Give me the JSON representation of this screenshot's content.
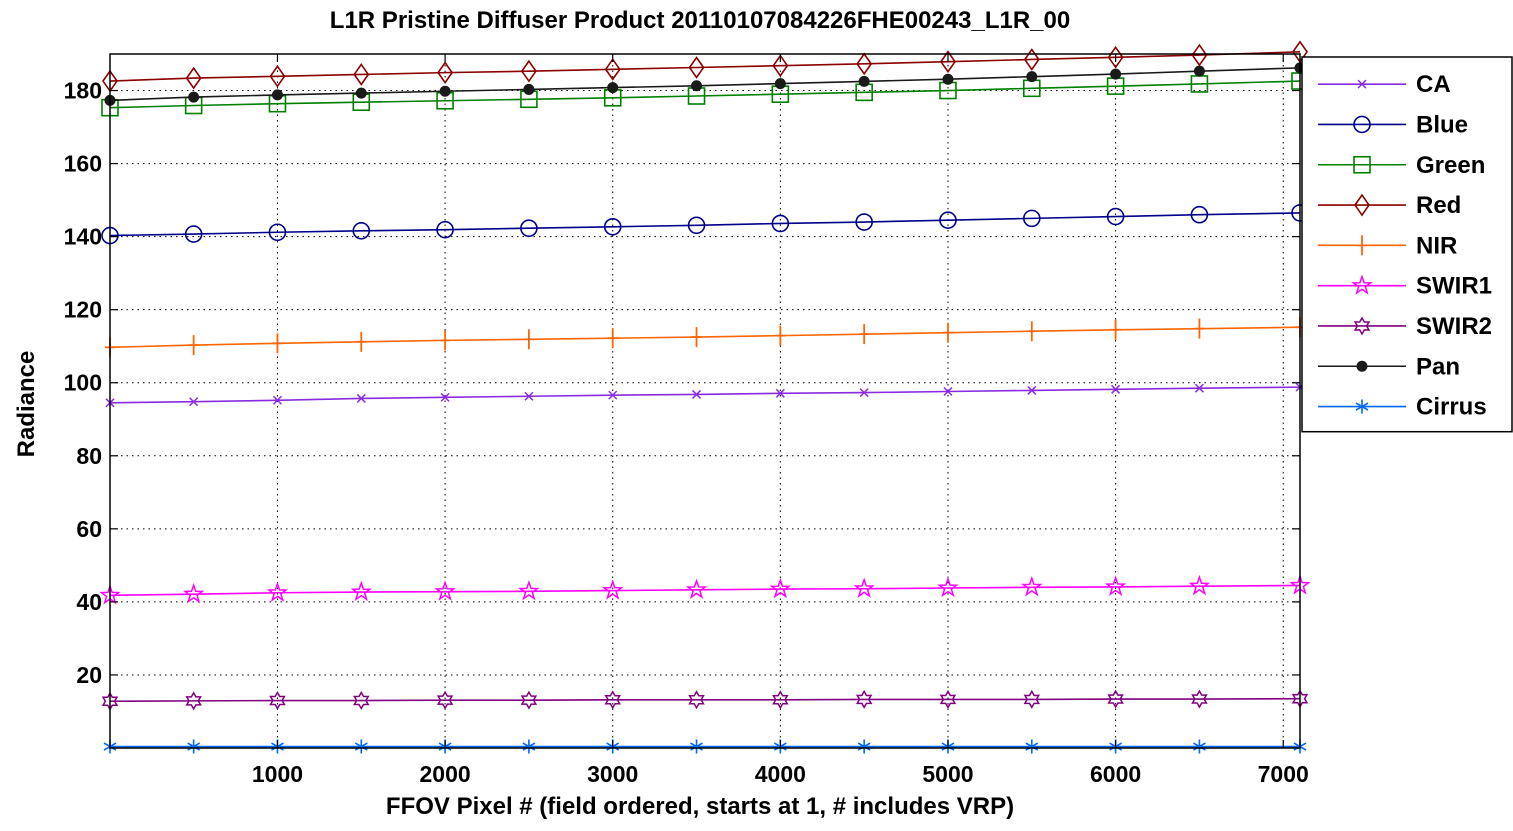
{
  "chart_data": {
    "type": "line",
    "title": "L1R Pristine Diffuser Product 20110107084226FHE00243_L1R_00",
    "xlabel": "FFOV Pixel # (field ordered, starts at 1, # includes VRP)",
    "ylabel": "Radiance",
    "xlim": [
      1,
      7100
    ],
    "ylim": [
      0,
      190
    ],
    "xticks": [
      1000,
      2000,
      3000,
      4000,
      5000,
      6000,
      7000
    ],
    "yticks": [
      20,
      40,
      60,
      80,
      100,
      120,
      140,
      160,
      180
    ],
    "grid": true,
    "legend_position": "outside-top-right",
    "x": [
      1,
      500,
      1000,
      1500,
      2000,
      2500,
      3000,
      3500,
      4000,
      4500,
      5000,
      5500,
      6000,
      6500,
      7100
    ],
    "series": [
      {
        "name": "CA",
        "color": "#8a2be2",
        "marker": "x",
        "values": [
          94.5,
          94.8,
          95.2,
          95.7,
          96.0,
          96.3,
          96.6,
          96.8,
          97.1,
          97.3,
          97.6,
          97.9,
          98.2,
          98.5,
          98.8
        ]
      },
      {
        "name": "Blue",
        "color": "#00008b",
        "marker": "circle",
        "values": [
          140.3,
          140.7,
          141.2,
          141.6,
          141.9,
          142.3,
          142.7,
          143.1,
          143.6,
          144.0,
          144.5,
          145.0,
          145.5,
          146.0,
          146.5
        ]
      },
      {
        "name": "Green",
        "color": "#008000",
        "marker": "square",
        "values": [
          175.3,
          175.9,
          176.4,
          176.8,
          177.2,
          177.6,
          178.0,
          178.5,
          179.0,
          179.5,
          180.0,
          180.6,
          181.2,
          181.8,
          182.6
        ]
      },
      {
        "name": "Red",
        "color": "#8b0000",
        "marker": "diamond",
        "values": [
          182.6,
          183.4,
          183.9,
          184.4,
          184.9,
          185.3,
          185.8,
          186.3,
          186.8,
          187.3,
          187.9,
          188.5,
          189.1,
          189.7,
          190.6
        ]
      },
      {
        "name": "NIR",
        "color": "#ff6600",
        "marker": "plus",
        "values": [
          109.7,
          110.3,
          110.8,
          111.2,
          111.6,
          111.9,
          112.2,
          112.5,
          112.9,
          113.3,
          113.7,
          114.1,
          114.5,
          114.8,
          115.2
        ]
      },
      {
        "name": "SWIR1",
        "color": "#ff00ff",
        "marker": "pentagram",
        "values": [
          41.8,
          42.1,
          42.5,
          42.7,
          42.8,
          42.9,
          43.1,
          43.3,
          43.5,
          43.6,
          43.8,
          44.0,
          44.1,
          44.3,
          44.5
        ]
      },
      {
        "name": "SWIR2",
        "color": "#800080",
        "marker": "hexagram",
        "values": [
          12.8,
          12.9,
          13.0,
          13.0,
          13.1,
          13.1,
          13.2,
          13.2,
          13.2,
          13.3,
          13.3,
          13.3,
          13.4,
          13.4,
          13.5
        ]
      },
      {
        "name": "Pan",
        "color": "#1a1a1a",
        "marker": "filled-circle",
        "values": [
          177.3,
          178.2,
          178.8,
          179.3,
          179.8,
          180.3,
          180.8,
          181.3,
          181.9,
          182.5,
          183.1,
          183.8,
          184.5,
          185.3,
          186.2
        ]
      },
      {
        "name": "Cirrus",
        "color": "#0066ff",
        "marker": "asterisk",
        "values": [
          0.4,
          0.4,
          0.4,
          0.4,
          0.4,
          0.4,
          0.4,
          0.4,
          0.4,
          0.4,
          0.4,
          0.4,
          0.4,
          0.4,
          0.4
        ]
      }
    ]
  }
}
